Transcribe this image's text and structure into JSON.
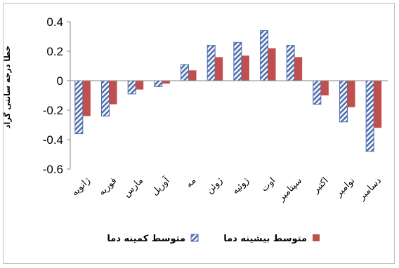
{
  "chart_data": {
    "type": "bar",
    "ylabel": "خطا درجه سانتی گراد",
    "ylim": [
      -0.6,
      0.4
    ],
    "yticks": [
      "0.4",
      "0.2",
      "0",
      "-0.2",
      "-0.4",
      "-0.6"
    ],
    "categories": [
      "ژانویه",
      "فوریه",
      "مارس",
      "آوریل",
      "مه",
      "ژوئن",
      "ژوئیه",
      "اوت",
      "سپتامبر",
      "اکتبر",
      "نوامبر",
      "دسامبر"
    ],
    "series": [
      {
        "name": "متوسط کمینه دما",
        "color": "#4f6fae",
        "pattern": "hatched",
        "values": [
          -0.36,
          -0.24,
          -0.09,
          -0.04,
          0.11,
          0.24,
          0.26,
          0.34,
          0.24,
          -0.16,
          -0.28,
          -0.48
        ]
      },
      {
        "name": "متوسط بیشینه دما",
        "color": "#c0504d",
        "pattern": "solid",
        "values": [
          -0.24,
          -0.16,
          -0.06,
          -0.02,
          0.07,
          0.16,
          0.17,
          0.22,
          0.16,
          -0.1,
          -0.18,
          -0.32
        ]
      }
    ],
    "grid": false,
    "legend_position": "bottom"
  }
}
